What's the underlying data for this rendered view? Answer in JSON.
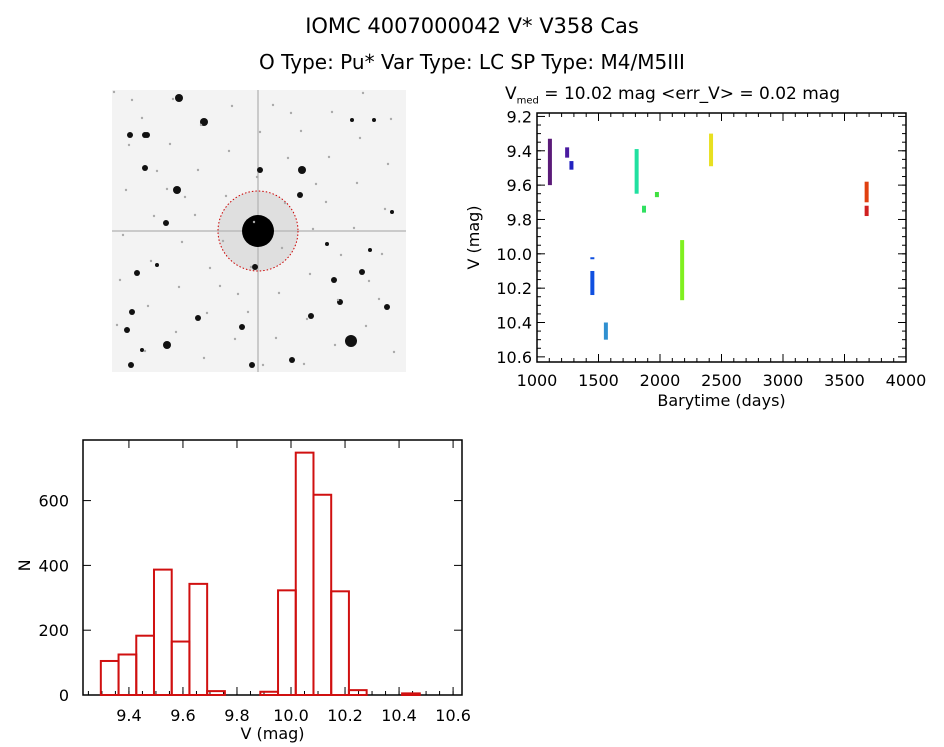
{
  "header": {
    "title": "IOMC 4007000042    V* V358 Cas",
    "subtitle": "O Type: Pu*  Var Type: LC  SP Type: M4/M5III"
  },
  "image_panel": {
    "description_colors": {
      "background": "#f2f2f2",
      "stars": "#000000",
      "aperture_circle": "#cc0000"
    }
  },
  "chart_data": [
    {
      "type": "scatter",
      "title_prefix": "V",
      "title_sub": "med",
      "title_rest": " = 10.02 mag <err_V> = 0.02 mag",
      "xlabel": "Barytime (days)",
      "ylabel": "V (mag)",
      "xlim": [
        1000,
        4000
      ],
      "ylim": [
        10.63,
        9.18
      ],
      "y_inverted": true,
      "xticks": [
        "1000",
        "1500",
        "2000",
        "2500",
        "3000",
        "3500",
        "4000"
      ],
      "yticks": [
        "9.2",
        "9.4",
        "9.6",
        "9.8",
        "10.0",
        "10.2",
        "10.4",
        "10.6"
      ],
      "grid": false,
      "clusters": [
        {
          "t": 1105,
          "v_min": 9.33,
          "v_max": 9.6,
          "color": "#5a1a78"
        },
        {
          "t": 1245,
          "v_min": 9.38,
          "v_max": 9.44,
          "color": "#4a1aa0"
        },
        {
          "t": 1280,
          "v_min": 9.46,
          "v_max": 9.51,
          "color": "#2222c0"
        },
        {
          "t": 1450,
          "v_min": 10.1,
          "v_max": 10.24,
          "color": "#1050e0"
        },
        {
          "t": 1450,
          "v_min": 10.02,
          "v_max": 10.03,
          "color": "#1050e0"
        },
        {
          "t": 1560,
          "v_min": 10.4,
          "v_max": 10.5,
          "color": "#3090d0"
        },
        {
          "t": 1810,
          "v_min": 9.39,
          "v_max": 9.65,
          "color": "#20e0a0"
        },
        {
          "t": 1870,
          "v_min": 9.72,
          "v_max": 9.76,
          "color": "#30e060"
        },
        {
          "t": 1975,
          "v_min": 9.64,
          "v_max": 9.67,
          "color": "#40e040"
        },
        {
          "t": 2180,
          "v_min": 9.92,
          "v_max": 10.27,
          "color": "#80f020"
        },
        {
          "t": 2415,
          "v_min": 9.3,
          "v_max": 9.49,
          "color": "#e8e020"
        },
        {
          "t": 3680,
          "v_min": 9.58,
          "v_max": 9.7,
          "color": "#e04010"
        },
        {
          "t": 3680,
          "v_min": 9.72,
          "v_max": 9.78,
          "color": "#d02020"
        }
      ]
    },
    {
      "type": "bar",
      "subtype": "histogram",
      "xlabel": "V (mag)",
      "ylabel": "N",
      "xlim": [
        9.23,
        10.633
      ],
      "ylim": [
        0,
        787
      ],
      "xticks": [
        "9.4",
        "9.6",
        "9.8",
        "10.0",
        "10.2",
        "10.4",
        "10.6"
      ],
      "yticks": [
        "0",
        "200",
        "400",
        "600"
      ],
      "grid": false,
      "bin_start": 9.296,
      "bin_width": 0.0656,
      "values": [
        105,
        125,
        183,
        387,
        165,
        343,
        12,
        0,
        0,
        10,
        323,
        748,
        618,
        320,
        15,
        0,
        0,
        5,
        0
      ],
      "color": "#d01010"
    }
  ]
}
